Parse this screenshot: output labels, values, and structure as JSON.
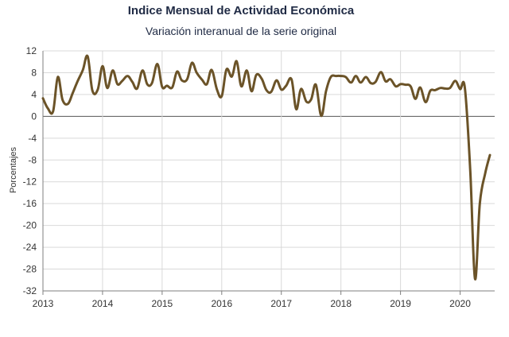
{
  "chart_data": {
    "type": "line",
    "title": "Indice Mensual de  Actividad Económica",
    "subtitle": "Variación interanual de la serie original",
    "ylabel": "Porcentajes",
    "xlabel": "",
    "ylim": [
      -32,
      12
    ],
    "yticks": [
      12,
      8,
      4,
      0,
      -4,
      -8,
      -12,
      -16,
      -20,
      -24,
      -28,
      -32
    ],
    "xlim": [
      2013,
      2020.58
    ],
    "xticks": [
      2013,
      2014,
      2015,
      2016,
      2017,
      2018,
      2019,
      2020
    ],
    "xtick_labels": [
      "2013",
      "2014",
      "2015",
      "2016",
      "2017",
      "2018",
      "2019",
      "2020"
    ],
    "grid": "horizontal",
    "legend": "none",
    "series": [
      {
        "color": "#6b5328",
        "x": [
          2013.0,
          2013.08,
          2013.17,
          2013.25,
          2013.33,
          2013.42,
          2013.5,
          2013.58,
          2013.67,
          2013.75,
          2013.83,
          2013.92,
          2014.0,
          2014.08,
          2014.17,
          2014.25,
          2014.33,
          2014.42,
          2014.5,
          2014.58,
          2014.67,
          2014.75,
          2014.83,
          2014.92,
          2015.0,
          2015.08,
          2015.17,
          2015.25,
          2015.33,
          2015.42,
          2015.5,
          2015.58,
          2015.67,
          2015.75,
          2015.83,
          2015.92,
          2016.0,
          2016.08,
          2016.17,
          2016.25,
          2016.33,
          2016.42,
          2016.5,
          2016.58,
          2016.67,
          2016.75,
          2016.83,
          2016.92,
          2017.0,
          2017.08,
          2017.17,
          2017.25,
          2017.33,
          2017.42,
          2017.5,
          2017.58,
          2017.67,
          2017.75,
          2017.83,
          2017.92,
          2018.0,
          2018.08,
          2018.17,
          2018.25,
          2018.33,
          2018.42,
          2018.5,
          2018.58,
          2018.67,
          2018.75,
          2018.83,
          2018.92,
          2019.0,
          2019.08,
          2019.17,
          2019.25,
          2019.33,
          2019.42,
          2019.5,
          2019.58,
          2019.67,
          2019.75,
          2019.83,
          2019.92,
          2020.0,
          2020.08,
          2020.17,
          2020.25,
          2020.33,
          2020.42,
          2020.5
        ],
        "y": [
          3.3,
          1.5,
          0.9,
          7.2,
          3.0,
          2.3,
          4.3,
          6.4,
          8.5,
          11.0,
          4.7,
          4.9,
          9.2,
          5.2,
          8.4,
          5.9,
          6.5,
          7.4,
          6.3,
          5.1,
          8.4,
          5.9,
          6.1,
          9.6,
          5.4,
          5.6,
          5.3,
          8.2,
          6.6,
          6.8,
          9.8,
          8.0,
          6.7,
          5.9,
          8.5,
          4.9,
          3.7,
          8.6,
          7.3,
          10.1,
          5.5,
          8.4,
          4.6,
          7.6,
          6.9,
          4.8,
          4.5,
          6.6,
          4.9,
          5.6,
          6.8,
          1.3,
          5.0,
          2.7,
          3.1,
          5.8,
          0.1,
          4.6,
          7.2,
          7.4,
          7.4,
          7.2,
          6.2,
          7.4,
          6.2,
          7.2,
          6.1,
          6.3,
          8.1,
          6.4,
          6.8,
          5.5,
          5.9,
          5.8,
          5.5,
          3.2,
          5.3,
          2.6,
          4.7,
          4.8,
          5.2,
          5.1,
          5.2,
          6.5,
          5.0,
          5.2,
          -10.0,
          -29.8,
          -16.0,
          -10.5,
          -7.1
        ]
      }
    ]
  }
}
